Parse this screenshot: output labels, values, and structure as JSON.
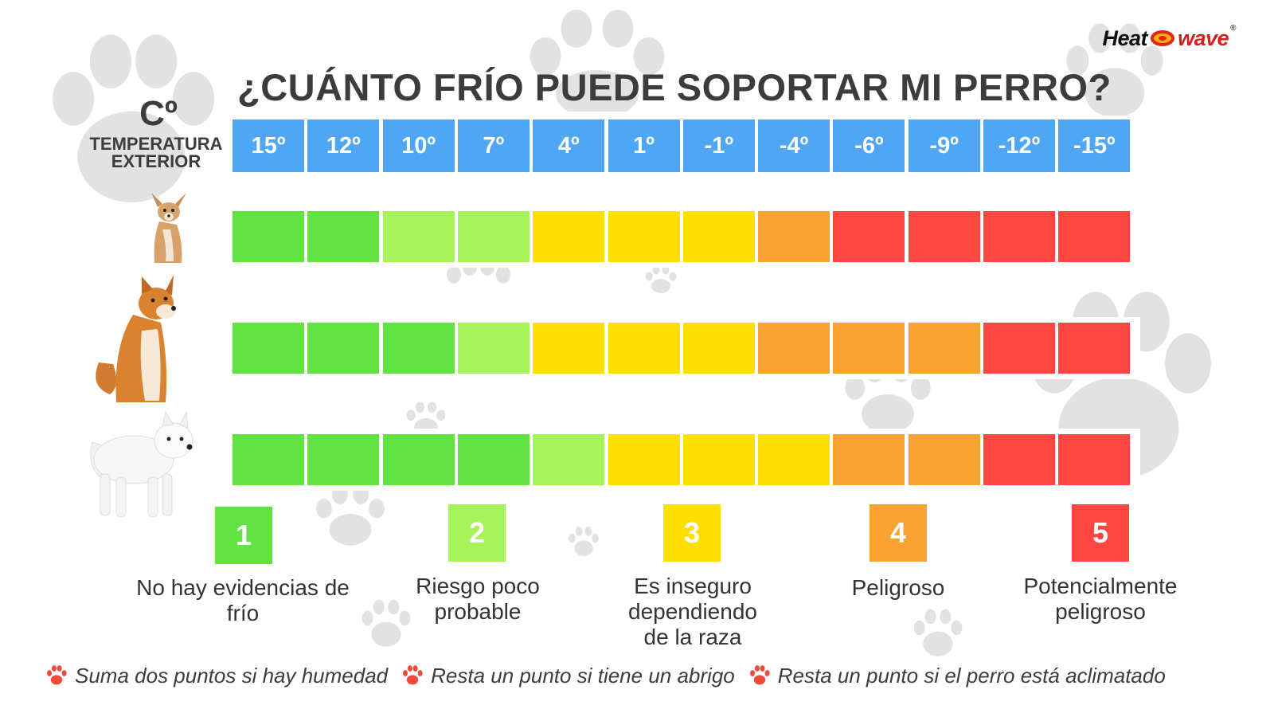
{
  "brand": {
    "heat": "Heat",
    "wave": "wave",
    "registered": "®"
  },
  "title": "¿CUÁNTO FRÍO PUEDE SOPORTAR MI PERRO?",
  "unit": "Cº",
  "temperature_label": "TEMPERATURA EXTERIOR",
  "colors": {
    "header": "#4ea6f5",
    "level_1": "#62e342",
    "level_2": "#a7f35a",
    "level_3": "#ffdf00",
    "level_4": "#f7a231",
    "level_5": "#fc4741"
  },
  "chart_data": {
    "type": "heatmap",
    "columns": [
      "15º",
      "12º",
      "10º",
      "7º",
      "4º",
      "1º",
      "-1º",
      "-4º",
      "-6º",
      "-9º",
      "-12º",
      "-15º"
    ],
    "rows": [
      {
        "dog": "small-dog-chihuahua",
        "levels": [
          1,
          1,
          2,
          2,
          3,
          3,
          3,
          4,
          5,
          5,
          5,
          5
        ]
      },
      {
        "dog": "medium-dog-shiba",
        "levels": [
          1,
          1,
          1,
          2,
          3,
          3,
          3,
          4,
          4,
          4,
          5,
          5
        ]
      },
      {
        "dog": "large-dog-samoyed",
        "levels": [
          1,
          1,
          1,
          1,
          2,
          3,
          3,
          3,
          4,
          4,
          5,
          5
        ]
      }
    ]
  },
  "legend": [
    {
      "level": "1",
      "text": "No hay evidencias de frío"
    },
    {
      "level": "2",
      "text": "Riesgo poco probable"
    },
    {
      "level": "3",
      "text": "Es inseguro dependiendo de la raza"
    },
    {
      "level": "4",
      "text": "Peligroso"
    },
    {
      "level": "5",
      "text": "Potencialmente peligroso"
    }
  ],
  "notes": [
    "Suma dos puntos si hay humedad",
    "Resta un punto si tiene un abrigo",
    "Resta un punto si el perro está aclimatado"
  ]
}
